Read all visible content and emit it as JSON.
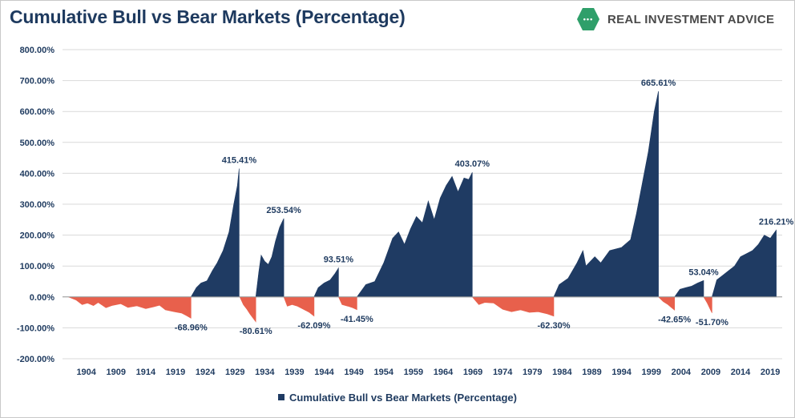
{
  "header": {
    "title": "Cumulative Bull vs Bear Markets (Percentage)",
    "brand": {
      "logo_text": "•••",
      "name": "REAL INVESTMENT ADVICE",
      "logo_color": "#2f9f6a"
    }
  },
  "colors": {
    "bull": "#1f3b63",
    "bear": "#e8604c",
    "axis_text": "#1e3a5f",
    "grid": "#d9d9d9"
  },
  "chart_data": {
    "type": "area",
    "title": "Cumulative Bull vs Bear Markets (Percentage)",
    "xlabel": "",
    "ylabel": "",
    "ylim": [
      -200,
      800
    ],
    "y_ticks": [
      -200,
      -100,
      0,
      100,
      200,
      300,
      400,
      500,
      600,
      700,
      800
    ],
    "y_tick_labels": [
      "-200.00%",
      "-100.00%",
      "0.00%",
      "100.00%",
      "200.00%",
      "300.00%",
      "400.00%",
      "500.00%",
      "600.00%",
      "700.00%",
      "800.00%"
    ],
    "x_range": [
      1900,
      2021
    ],
    "x_ticks": [
      1904,
      1909,
      1914,
      1919,
      1924,
      1929,
      1934,
      1939,
      1944,
      1949,
      1954,
      1959,
      1964,
      1969,
      1974,
      1979,
      1984,
      1989,
      1994,
      1999,
      2004,
      2009,
      2014,
      2019
    ],
    "grid": "horizontal",
    "legend": "bottom",
    "series": [
      {
        "name": "Cumulative Bull vs Bear Markets (Percentage)",
        "segments": [
          {
            "kind": "bear",
            "start": 1901.0,
            "end": 1921.6,
            "end_value": -68.96,
            "points": [
              [
                1901.0,
                0
              ],
              [
                1902.3,
                -10
              ],
              [
                1903.3,
                -25
              ],
              [
                1904.2,
                -20
              ],
              [
                1905.2,
                -28
              ],
              [
                1906.0,
                -18
              ],
              [
                1907.3,
                -35
              ],
              [
                1908.3,
                -28
              ],
              [
                1909.8,
                -22
              ],
              [
                1911.0,
                -34
              ],
              [
                1912.5,
                -29
              ],
              [
                1914.0,
                -38
              ],
              [
                1915.3,
                -32
              ],
              [
                1916.3,
                -27
              ],
              [
                1917.3,
                -42
              ],
              [
                1918.8,
                -48
              ],
              [
                1920.0,
                -52
              ],
              [
                1920.8,
                -60
              ],
              [
                1921.6,
                -68.96
              ]
            ]
          },
          {
            "kind": "bull",
            "start": 1921.6,
            "end": 1929.7,
            "end_value": 415.41,
            "points": [
              [
                1921.6,
                0
              ],
              [
                1922.5,
                30
              ],
              [
                1923.3,
                45
              ],
              [
                1924.3,
                52
              ],
              [
                1925.2,
                85
              ],
              [
                1926.0,
                110
              ],
              [
                1927.0,
                150
              ],
              [
                1928.0,
                210
              ],
              [
                1928.8,
                300
              ],
              [
                1929.4,
                360
              ],
              [
                1929.7,
                415.41
              ]
            ]
          },
          {
            "kind": "bear",
            "start": 1929.8,
            "end": 1932.5,
            "end_value": -80.61,
            "points": [
              [
                1929.8,
                0
              ],
              [
                1930.4,
                -25
              ],
              [
                1931.0,
                -40
              ],
              [
                1931.5,
                -55
              ],
              [
                1932.0,
                -68
              ],
              [
                1932.5,
                -80.61
              ]
            ]
          },
          {
            "kind": "bull",
            "start": 1932.5,
            "end": 1937.2,
            "end_value": 253.54,
            "points": [
              [
                1932.5,
                0
              ],
              [
                1933.0,
                80
              ],
              [
                1933.4,
                135
              ],
              [
                1934.0,
                115
              ],
              [
                1934.6,
                105
              ],
              [
                1935.2,
                130
              ],
              [
                1935.8,
                180
              ],
              [
                1936.5,
                225
              ],
              [
                1937.2,
                253.54
              ]
            ]
          },
          {
            "kind": "bear",
            "start": 1937.2,
            "end": 1942.3,
            "end_value": -62.09,
            "points": [
              [
                1937.2,
                0
              ],
              [
                1937.8,
                -30
              ],
              [
                1938.6,
                -25
              ],
              [
                1939.5,
                -30
              ],
              [
                1940.5,
                -40
              ],
              [
                1941.5,
                -50
              ],
              [
                1942.3,
                -62.09
              ]
            ]
          },
          {
            "kind": "bull",
            "start": 1942.3,
            "end": 1946.4,
            "end_value": 93.51,
            "points": [
              [
                1942.3,
                0
              ],
              [
                1943.0,
                30
              ],
              [
                1944.0,
                45
              ],
              [
                1945.0,
                55
              ],
              [
                1945.8,
                75
              ],
              [
                1946.4,
                93.51
              ]
            ]
          },
          {
            "kind": "bear",
            "start": 1946.4,
            "end": 1949.5,
            "end_value": -41.45,
            "points": [
              [
                1946.4,
                0
              ],
              [
                1947.0,
                -25
              ],
              [
                1948.0,
                -30
              ],
              [
                1948.8,
                -35
              ],
              [
                1949.5,
                -41.45
              ]
            ]
          },
          {
            "kind": "bull",
            "start": 1949.5,
            "end": 1968.9,
            "end_value": 403.07,
            "points": [
              [
                1949.5,
                0
              ],
              [
                1951.0,
                40
              ],
              [
                1952.5,
                50
              ],
              [
                1954.0,
                110
              ],
              [
                1955.5,
                190
              ],
              [
                1956.5,
                210
              ],
              [
                1957.5,
                170
              ],
              [
                1958.5,
                220
              ],
              [
                1959.5,
                260
              ],
              [
                1960.5,
                240
              ],
              [
                1961.5,
                310
              ],
              [
                1962.5,
                250
              ],
              [
                1963.5,
                320
              ],
              [
                1964.5,
                360
              ],
              [
                1965.5,
                390
              ],
              [
                1966.5,
                340
              ],
              [
                1967.5,
                385
              ],
              [
                1968.3,
                380
              ],
              [
                1968.9,
                403.07
              ]
            ]
          },
          {
            "kind": "bear",
            "start": 1968.9,
            "end": 1982.6,
            "end_value": -62.3,
            "points": [
              [
                1968.9,
                0
              ],
              [
                1970.0,
                -25
              ],
              [
                1971.0,
                -18
              ],
              [
                1972.5,
                -20
              ],
              [
                1974.0,
                -40
              ],
              [
                1975.5,
                -48
              ],
              [
                1977.0,
                -42
              ],
              [
                1978.5,
                -50
              ],
              [
                1980.0,
                -48
              ],
              [
                1981.5,
                -55
              ],
              [
                1982.6,
                -62.3
              ]
            ]
          },
          {
            "kind": "bull",
            "start": 1982.6,
            "end": 2000.2,
            "end_value": 665.61,
            "points": [
              [
                1982.6,
                0
              ],
              [
                1983.5,
                40
              ],
              [
                1985.0,
                60
              ],
              [
                1986.5,
                110
              ],
              [
                1987.5,
                150
              ],
              [
                1988.0,
                100
              ],
              [
                1989.5,
                130
              ],
              [
                1990.5,
                110
              ],
              [
                1992.0,
                150
              ],
              [
                1994.0,
                160
              ],
              [
                1995.5,
                185
              ],
              [
                1996.5,
                270
              ],
              [
                1997.5,
                370
              ],
              [
                1998.5,
                470
              ],
              [
                1999.5,
                600
              ],
              [
                2000.2,
                665.61
              ]
            ]
          },
          {
            "kind": "bear",
            "start": 2000.2,
            "end": 2002.9,
            "end_value": -42.65,
            "points": [
              [
                2000.2,
                0
              ],
              [
                2001.0,
                -15
              ],
              [
                2001.8,
                -25
              ],
              [
                2002.4,
                -35
              ],
              [
                2002.9,
                -42.65
              ]
            ]
          },
          {
            "kind": "bull",
            "start": 2002.9,
            "end": 2007.8,
            "end_value": 53.04,
            "points": [
              [
                2002.9,
                0
              ],
              [
                2003.8,
                25
              ],
              [
                2004.8,
                30
              ],
              [
                2005.8,
                35
              ],
              [
                2006.8,
                45
              ],
              [
                2007.8,
                53.04
              ]
            ]
          },
          {
            "kind": "bear",
            "start": 2007.8,
            "end": 2009.2,
            "end_value": -51.7,
            "points": [
              [
                2007.8,
                0
              ],
              [
                2008.4,
                -20
              ],
              [
                2008.9,
                -40
              ],
              [
                2009.2,
                -51.7
              ]
            ]
          },
          {
            "kind": "bull",
            "start": 2009.2,
            "end": 2020.0,
            "end_value": 216.21,
            "points": [
              [
                2009.2,
                0
              ],
              [
                2010.0,
                55
              ],
              [
                2011.0,
                70
              ],
              [
                2012.0,
                85
              ],
              [
                2013.0,
                100
              ],
              [
                2014.0,
                130
              ],
              [
                2015.0,
                140
              ],
              [
                2016.0,
                150
              ],
              [
                2017.0,
                170
              ],
              [
                2018.0,
                200
              ],
              [
                2019.0,
                190
              ],
              [
                2020.0,
                216.21
              ]
            ]
          }
        ]
      }
    ],
    "data_labels": [
      {
        "text": "-68.96%",
        "x": 1921.6,
        "y": -68.96,
        "side": "below"
      },
      {
        "text": "415.41%",
        "x": 1929.7,
        "y": 415.41,
        "side": "above"
      },
      {
        "text": "-80.61%",
        "x": 1932.5,
        "y": -80.61,
        "side": "below"
      },
      {
        "text": "253.54%",
        "x": 1937.2,
        "y": 253.54,
        "side": "above"
      },
      {
        "text": "-62.09%",
        "x": 1942.3,
        "y": -62.09,
        "side": "below"
      },
      {
        "text": "93.51%",
        "x": 1946.4,
        "y": 93.51,
        "side": "above"
      },
      {
        "text": "-41.45%",
        "x": 1949.5,
        "y": -41.45,
        "side": "below"
      },
      {
        "text": "403.07%",
        "x": 1968.9,
        "y": 403.07,
        "side": "above"
      },
      {
        "text": "-62.30%",
        "x": 1982.6,
        "y": -62.3,
        "side": "below"
      },
      {
        "text": "665.61%",
        "x": 2000.2,
        "y": 665.61,
        "side": "above"
      },
      {
        "text": "-42.65%",
        "x": 2002.9,
        "y": -42.65,
        "side": "below"
      },
      {
        "text": "53.04%",
        "x": 2007.8,
        "y": 53.04,
        "side": "above"
      },
      {
        "text": "-51.70%",
        "x": 2009.2,
        "y": -51.7,
        "side": "below"
      },
      {
        "text": "216.21%",
        "x": 2020.0,
        "y": 216.21,
        "side": "above"
      }
    ]
  },
  "legend": {
    "label": "Cumulative Bull vs Bear Markets (Percentage)"
  }
}
